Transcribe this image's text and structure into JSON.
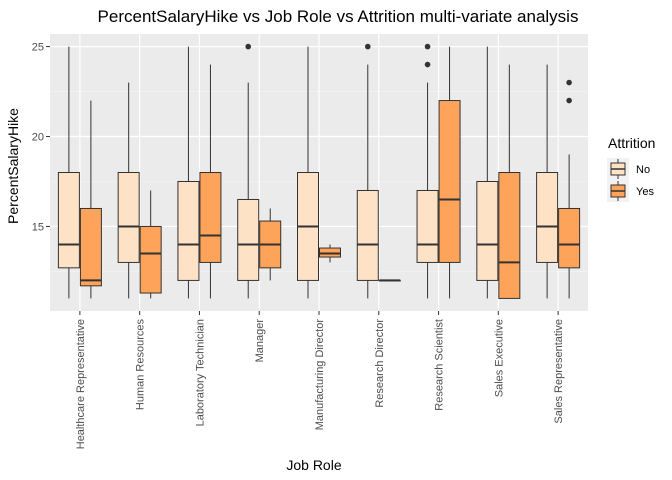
{
  "chart_data": {
    "type": "boxplot",
    "title": "PercentSalaryHike vs Job Role vs Attrition multi-variate analysis",
    "xlabel": "Job Role",
    "ylabel": "PercentSalaryHike",
    "ylim": [
      10.3,
      25.7
    ],
    "yticks": [
      15,
      20,
      25
    ],
    "grid": true,
    "legend": {
      "title": "Attrition",
      "position": "right"
    },
    "categories": [
      "Healthcare Representative",
      "Human Resources",
      "Laboratory Technician",
      "Manager",
      "Manufacturing Director",
      "Research Director",
      "Research Scientist",
      "Sales Executive",
      "Sales Representative"
    ],
    "series": [
      {
        "name": "No",
        "color": "#FEE2C5",
        "boxes": [
          {
            "min": 11,
            "q1": 12.7,
            "median": 14,
            "q3": 18,
            "max": 25,
            "outliers": []
          },
          {
            "min": 11,
            "q1": 13,
            "median": 15,
            "q3": 18,
            "max": 23,
            "outliers": []
          },
          {
            "min": 11,
            "q1": 12,
            "median": 14,
            "q3": 17.5,
            "max": 25,
            "outliers": []
          },
          {
            "min": 11,
            "q1": 12,
            "median": 14,
            "q3": 16.5,
            "max": 23,
            "outliers": [
              25
            ]
          },
          {
            "min": 11,
            "q1": 12,
            "median": 15,
            "q3": 18,
            "max": 25,
            "outliers": []
          },
          {
            "min": 11,
            "q1": 12,
            "median": 14,
            "q3": 17,
            "max": 24,
            "outliers": [
              25
            ]
          },
          {
            "min": 11,
            "q1": 13,
            "median": 14,
            "q3": 17,
            "max": 23,
            "outliers": [
              24,
              25
            ]
          },
          {
            "min": 11,
            "q1": 12,
            "median": 14,
            "q3": 17.5,
            "max": 25,
            "outliers": []
          },
          {
            "min": 11,
            "q1": 13,
            "median": 15,
            "q3": 18,
            "max": 24,
            "outliers": []
          }
        ]
      },
      {
        "name": "Yes",
        "color": "#FDA35A",
        "boxes": [
          {
            "min": 11,
            "q1": 11.7,
            "median": 12,
            "q3": 16,
            "max": 22,
            "outliers": []
          },
          {
            "min": 11,
            "q1": 11.3,
            "median": 13.5,
            "q3": 15,
            "max": 17,
            "outliers": []
          },
          {
            "min": 11,
            "q1": 13,
            "median": 14.5,
            "q3": 18,
            "max": 24,
            "outliers": []
          },
          {
            "min": 12,
            "q1": 12.7,
            "median": 14,
            "q3": 15.3,
            "max": 16,
            "outliers": []
          },
          {
            "min": 13,
            "q1": 13.3,
            "median": 13.5,
            "q3": 13.8,
            "max": 14,
            "outliers": []
          },
          {
            "min": 12,
            "q1": 12,
            "median": 12,
            "q3": 12,
            "max": 12,
            "outliers": []
          },
          {
            "min": 11,
            "q1": 13,
            "median": 16.5,
            "q3": 22,
            "max": 25,
            "outliers": []
          },
          {
            "min": 11,
            "q1": 11,
            "median": 13,
            "q3": 18,
            "max": 24,
            "outliers": []
          },
          {
            "min": 11,
            "q1": 12.7,
            "median": 14,
            "q3": 16,
            "max": 19,
            "outliers": [
              22,
              23
            ]
          }
        ]
      }
    ]
  }
}
